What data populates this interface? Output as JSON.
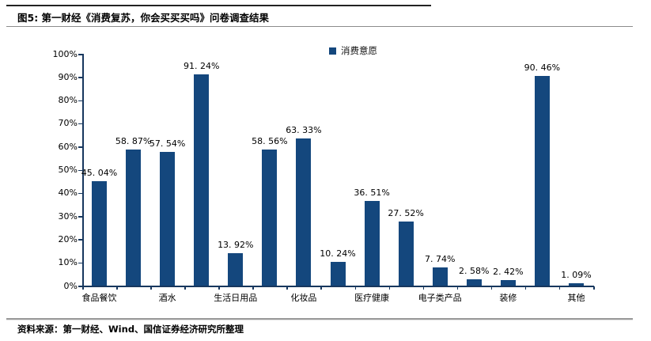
{
  "header": {
    "title": "图5: 第一财经《消费复苏，你会买买买吗》问卷调查结果"
  },
  "footer": {
    "source": "资料来源：第一财经、Wind、国信证券经济研究所整理"
  },
  "colors": {
    "bar": "#14477D",
    "axis": "#17375E",
    "text": "#000000"
  },
  "chart_data": {
    "type": "bar",
    "title": "",
    "legend_label": "消费意愿",
    "legend_position": "top",
    "grid": false,
    "ylim": [
      0,
      100
    ],
    "ytick_step": 10,
    "ytick_labels": [
      "0%",
      "10%",
      "20%",
      "30%",
      "40%",
      "50%",
      "60%",
      "70%",
      "80%",
      "90%",
      "100%"
    ],
    "x_axis_labels_shown": [
      "食品餐饮",
      "酒水",
      "生活日用品",
      "化妆品",
      "医疗健康",
      "电子类产品",
      "装修",
      "其他"
    ],
    "bars": [
      {
        "value": 45.04,
        "label": "45. 04%",
        "category": "食品餐饮"
      },
      {
        "value": 58.87,
        "label": "58. 87%",
        "category": ""
      },
      {
        "value": 57.54,
        "label": "57. 54%",
        "category": "酒水"
      },
      {
        "value": 91.24,
        "label": "91. 24%",
        "category": ""
      },
      {
        "value": 13.92,
        "label": "13. 92%",
        "category": "生活日用品"
      },
      {
        "value": 58.56,
        "label": "58. 56%",
        "category": ""
      },
      {
        "value": 63.33,
        "label": "63. 33%",
        "category": "化妆品"
      },
      {
        "value": 10.24,
        "label": "10. 24%",
        "category": ""
      },
      {
        "value": 36.51,
        "label": "36. 51%",
        "category": "医疗健康"
      },
      {
        "value": 27.52,
        "label": "27. 52%",
        "category": ""
      },
      {
        "value": 7.74,
        "label": "7. 74%",
        "category": "电子类产品"
      },
      {
        "value": 2.58,
        "label": "2. 58%",
        "category": ""
      },
      {
        "value": 2.42,
        "label": "2. 42%",
        "category": "装修"
      },
      {
        "value": 90.46,
        "label": "90. 46%",
        "category": ""
      },
      {
        "value": 1.09,
        "label": "1. 09%",
        "category": "其他"
      }
    ]
  }
}
